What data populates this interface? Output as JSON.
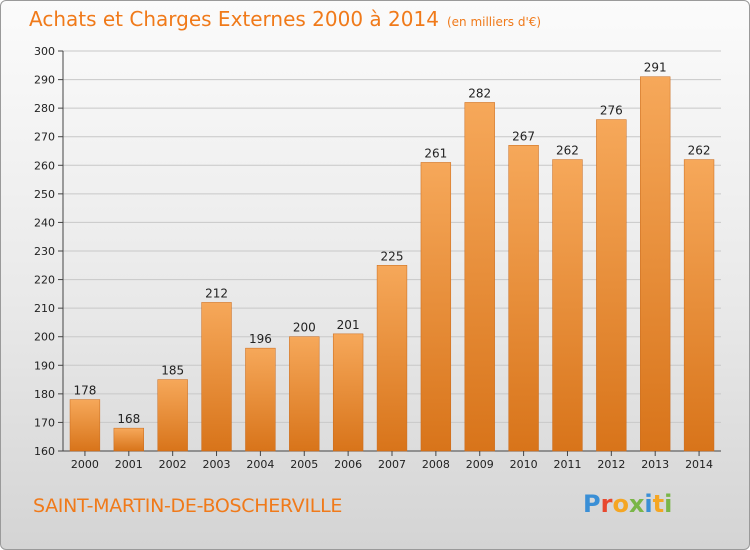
{
  "chart_data": {
    "type": "bar",
    "title": "Achats et Charges Externes 2000 à 2014",
    "subtitle": "(en milliers d'€)",
    "categories": [
      "2000",
      "2001",
      "2002",
      "2003",
      "2004",
      "2005",
      "2006",
      "2007",
      "2008",
      "2009",
      "2010",
      "2011",
      "2012",
      "2013",
      "2014"
    ],
    "values": [
      178,
      168,
      185,
      212,
      196,
      200,
      201,
      225,
      261,
      282,
      267,
      262,
      276,
      291,
      262
    ],
    "ylim": [
      160,
      300
    ],
    "yticks": [
      160,
      170,
      180,
      190,
      200,
      210,
      220,
      230,
      240,
      250,
      260,
      270,
      280,
      290,
      300
    ],
    "grid": true,
    "bar_color": "#f0902e",
    "xlabel": "",
    "ylabel": ""
  },
  "commune": "SAINT-MARTIN-DE-BOSCHERVILLE",
  "logo": {
    "letters": [
      "P",
      "r",
      "o",
      "x",
      "i",
      "t",
      "i"
    ],
    "colors": [
      "#3a8fd6",
      "#e8482e",
      "#f5a623",
      "#7ab648",
      "#3a8fd6",
      "#f5a623",
      "#7ab648"
    ]
  }
}
